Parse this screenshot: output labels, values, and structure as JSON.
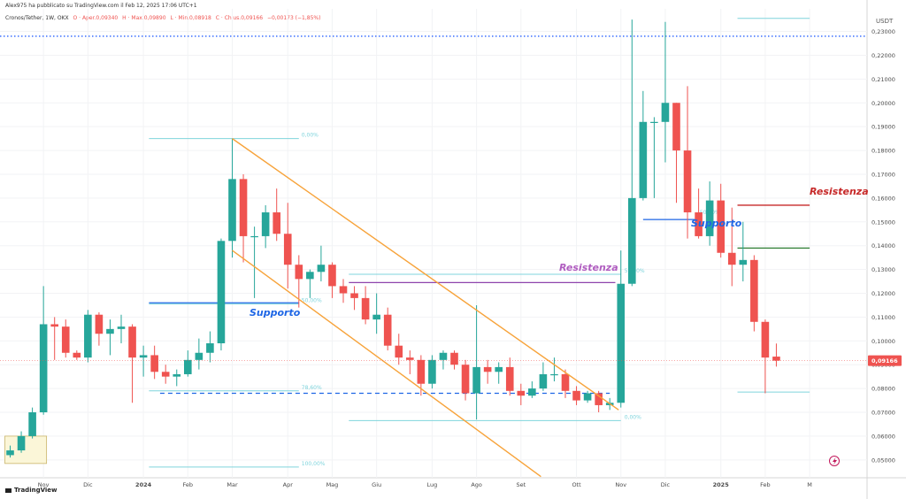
{
  "header": {
    "publisher_line": "Alex975 ha pubblicato su TradingView.com il Feb 12, 2025 17:06 UTC+1",
    "symbol": "Cronos/Tether, 1W, OKX",
    "open": "O · Aper.0,09340",
    "high": "H · Max.0,09890",
    "low": "L · Min.0,08918",
    "close": "C · Chius.0,09166",
    "change": "−0,00173 (−1,85%)"
  },
  "branding": {
    "logo_text": "TradingView"
  },
  "price_axis": {
    "unit": "USDT",
    "last_price_label": "0,09166"
  },
  "colors": {
    "up": "#26a69a",
    "down": "#ef5350",
    "channel": "#f7a33a",
    "support": "#1e66e5",
    "resistance_purple": "#8e44ad",
    "resistance_red": "#c62828",
    "green_level": "#2e7d32",
    "fib": "#7fd4dc",
    "title_line": "#2962ff"
  },
  "chart_data": {
    "type": "candlestick",
    "title": "Cronos/Tether, 1W, OKX",
    "ylabel": "USDT",
    "ylim": [
      0.0425,
      0.2395
    ],
    "y_ticks": [
      "0,23000",
      "0,22000",
      "0,21000",
      "0,20000",
      "0,19000",
      "0,18000",
      "0,17000",
      "0,16000",
      "0,15000",
      "0,14000",
      "0,13000",
      "0,12000",
      "0,11000",
      "0,10000",
      "0,09000",
      "0,08000",
      "0,07000",
      "0,06000",
      "0,05000"
    ],
    "y_tick_values": [
      0.23,
      0.22,
      0.21,
      0.2,
      0.19,
      0.18,
      0.17,
      0.16,
      0.15,
      0.14,
      0.13,
      0.12,
      0.11,
      0.1,
      0.09,
      0.08,
      0.07,
      0.06,
      0.05
    ],
    "x_tick_labels": [
      {
        "label": "Nov",
        "week": 3
      },
      {
        "label": "Dic",
        "week": 7
      },
      {
        "label": "2024",
        "week": 12
      },
      {
        "label": "Feb",
        "week": 16
      },
      {
        "label": "Mar",
        "week": 20
      },
      {
        "label": "Apr",
        "week": 25
      },
      {
        "label": "Mag",
        "week": 29
      },
      {
        "label": "Giu",
        "week": 33
      },
      {
        "label": "Lug",
        "week": 38
      },
      {
        "label": "Ago",
        "week": 42
      },
      {
        "label": "Set",
        "week": 46
      },
      {
        "label": "Ott",
        "week": 51
      },
      {
        "label": "Nov",
        "week": 55
      },
      {
        "label": "Dic",
        "week": 59
      },
      {
        "label": "2025",
        "week": 64
      },
      {
        "label": "Feb",
        "week": 68
      },
      {
        "label": "M",
        "week": 72
      }
    ],
    "candles": [
      {
        "o": 0.052,
        "h": 0.056,
        "l": 0.051,
        "c": 0.054
      },
      {
        "o": 0.054,
        "h": 0.062,
        "l": 0.053,
        "c": 0.06
      },
      {
        "o": 0.06,
        "h": 0.072,
        "l": 0.059,
        "c": 0.07
      },
      {
        "o": 0.07,
        "h": 0.123,
        "l": 0.069,
        "c": 0.107
      },
      {
        "o": 0.107,
        "h": 0.11,
        "l": 0.092,
        "c": 0.106
      },
      {
        "o": 0.106,
        "h": 0.109,
        "l": 0.093,
        "c": 0.095
      },
      {
        "o": 0.095,
        "h": 0.096,
        "l": 0.092,
        "c": 0.093
      },
      {
        "o": 0.093,
        "h": 0.113,
        "l": 0.091,
        "c": 0.111
      },
      {
        "o": 0.111,
        "h": 0.112,
        "l": 0.098,
        "c": 0.103
      },
      {
        "o": 0.103,
        "h": 0.109,
        "l": 0.094,
        "c": 0.105
      },
      {
        "o": 0.105,
        "h": 0.111,
        "l": 0.099,
        "c": 0.106
      },
      {
        "o": 0.106,
        "h": 0.107,
        "l": 0.074,
        "c": 0.093
      },
      {
        "o": 0.093,
        "h": 0.098,
        "l": 0.085,
        "c": 0.094
      },
      {
        "o": 0.094,
        "h": 0.098,
        "l": 0.084,
        "c": 0.087
      },
      {
        "o": 0.087,
        "h": 0.09,
        "l": 0.082,
        "c": 0.085
      },
      {
        "o": 0.085,
        "h": 0.088,
        "l": 0.081,
        "c": 0.086
      },
      {
        "o": 0.086,
        "h": 0.096,
        "l": 0.085,
        "c": 0.092
      },
      {
        "o": 0.092,
        "h": 0.101,
        "l": 0.088,
        "c": 0.095
      },
      {
        "o": 0.095,
        "h": 0.104,
        "l": 0.091,
        "c": 0.099
      },
      {
        "o": 0.099,
        "h": 0.143,
        "l": 0.096,
        "c": 0.142
      },
      {
        "o": 0.142,
        "h": 0.185,
        "l": 0.135,
        "c": 0.168
      },
      {
        "o": 0.168,
        "h": 0.17,
        "l": 0.133,
        "c": 0.144
      },
      {
        "o": 0.144,
        "h": 0.148,
        "l": 0.118,
        "c": 0.144
      },
      {
        "o": 0.144,
        "h": 0.157,
        "l": 0.139,
        "c": 0.154
      },
      {
        "o": 0.154,
        "h": 0.164,
        "l": 0.142,
        "c": 0.145
      },
      {
        "o": 0.145,
        "h": 0.158,
        "l": 0.122,
        "c": 0.132
      },
      {
        "o": 0.132,
        "h": 0.136,
        "l": 0.114,
        "c": 0.126
      },
      {
        "o": 0.126,
        "h": 0.13,
        "l": 0.118,
        "c": 0.129
      },
      {
        "o": 0.129,
        "h": 0.14,
        "l": 0.125,
        "c": 0.132
      },
      {
        "o": 0.132,
        "h": 0.133,
        "l": 0.118,
        "c": 0.123
      },
      {
        "o": 0.123,
        "h": 0.126,
        "l": 0.116,
        "c": 0.12
      },
      {
        "o": 0.12,
        "h": 0.123,
        "l": 0.113,
        "c": 0.118
      },
      {
        "o": 0.118,
        "h": 0.123,
        "l": 0.107,
        "c": 0.109
      },
      {
        "o": 0.109,
        "h": 0.12,
        "l": 0.103,
        "c": 0.111
      },
      {
        "o": 0.111,
        "h": 0.114,
        "l": 0.096,
        "c": 0.098
      },
      {
        "o": 0.098,
        "h": 0.103,
        "l": 0.09,
        "c": 0.093
      },
      {
        "o": 0.093,
        "h": 0.096,
        "l": 0.086,
        "c": 0.092
      },
      {
        "o": 0.092,
        "h": 0.094,
        "l": 0.077,
        "c": 0.082
      },
      {
        "o": 0.082,
        "h": 0.094,
        "l": 0.08,
        "c": 0.092
      },
      {
        "o": 0.092,
        "h": 0.096,
        "l": 0.088,
        "c": 0.095
      },
      {
        "o": 0.095,
        "h": 0.096,
        "l": 0.088,
        "c": 0.09
      },
      {
        "o": 0.09,
        "h": 0.092,
        "l": 0.075,
        "c": 0.078
      },
      {
        "o": 0.078,
        "h": 0.115,
        "l": 0.067,
        "c": 0.089
      },
      {
        "o": 0.089,
        "h": 0.092,
        "l": 0.082,
        "c": 0.087
      },
      {
        "o": 0.087,
        "h": 0.091,
        "l": 0.082,
        "c": 0.089
      },
      {
        "o": 0.089,
        "h": 0.093,
        "l": 0.077,
        "c": 0.079
      },
      {
        "o": 0.079,
        "h": 0.082,
        "l": 0.073,
        "c": 0.077
      },
      {
        "o": 0.077,
        "h": 0.083,
        "l": 0.076,
        "c": 0.08
      },
      {
        "o": 0.08,
        "h": 0.091,
        "l": 0.079,
        "c": 0.086
      },
      {
        "o": 0.086,
        "h": 0.093,
        "l": 0.083,
        "c": 0.086
      },
      {
        "o": 0.086,
        "h": 0.088,
        "l": 0.076,
        "c": 0.079
      },
      {
        "o": 0.079,
        "h": 0.081,
        "l": 0.073,
        "c": 0.075
      },
      {
        "o": 0.075,
        "h": 0.079,
        "l": 0.074,
        "c": 0.078
      },
      {
        "o": 0.078,
        "h": 0.079,
        "l": 0.07,
        "c": 0.073
      },
      {
        "o": 0.073,
        "h": 0.076,
        "l": 0.071,
        "c": 0.074
      },
      {
        "o": 0.074,
        "h": 0.138,
        "l": 0.072,
        "c": 0.124
      },
      {
        "o": 0.124,
        "h": 0.235,
        "l": 0.123,
        "c": 0.16
      },
      {
        "o": 0.16,
        "h": 0.205,
        "l": 0.159,
        "c": 0.192
      },
      {
        "o": 0.192,
        "h": 0.194,
        "l": 0.16,
        "c": 0.192
      },
      {
        "o": 0.192,
        "h": 0.234,
        "l": 0.175,
        "c": 0.2
      },
      {
        "o": 0.2,
        "h": 0.2,
        "l": 0.158,
        "c": 0.18
      },
      {
        "o": 0.18,
        "h": 0.207,
        "l": 0.143,
        "c": 0.154
      },
      {
        "o": 0.154,
        "h": 0.164,
        "l": 0.143,
        "c": 0.144
      },
      {
        "o": 0.144,
        "h": 0.167,
        "l": 0.14,
        "c": 0.159
      },
      {
        "o": 0.159,
        "h": 0.166,
        "l": 0.135,
        "c": 0.137
      },
      {
        "o": 0.137,
        "h": 0.156,
        "l": 0.123,
        "c": 0.132
      },
      {
        "o": 0.132,
        "h": 0.15,
        "l": 0.125,
        "c": 0.134
      },
      {
        "o": 0.134,
        "h": 0.136,
        "l": 0.104,
        "c": 0.108
      },
      {
        "o": 0.108,
        "h": 0.109,
        "l": 0.078,
        "c": 0.093
      },
      {
        "o": 0.0934,
        "h": 0.0989,
        "l": 0.0892,
        "c": 0.0917
      }
    ],
    "channel_upper": {
      "from": {
        "week": 20,
        "y": 0.185
      },
      "to": {
        "week": 54.8,
        "y": 0.071
      }
    },
    "channel_lower": {
      "from": {
        "week": 20,
        "y": 0.138
      },
      "to": {
        "week": 47.8,
        "y": 0.043
      }
    },
    "levels": [
      {
        "name": "Supporto 2024",
        "y": 0.116,
        "from": 12.5,
        "to": 26,
        "label": "Supporto"
      },
      {
        "name": "Resistenza 2024",
        "y": 0.1245,
        "from": 30.5,
        "to": 54.5,
        "label": "Resistenza"
      },
      {
        "name": "Dashed level",
        "y": 0.078,
        "from": 13.5,
        "to": 54,
        "dashed": true
      },
      {
        "name": "Supporto 2024 Q4",
        "y": 0.151,
        "from": 57,
        "to": 62,
        "label": "Supporto"
      },
      {
        "name": "Resistenza 2025",
        "y": 0.157,
        "from": 65.5,
        "to": 72,
        "label": "Resistenza"
      },
      {
        "name": "Green level",
        "y": 0.139,
        "from": 65.5,
        "to": 72
      }
    ],
    "fib_left": {
      "from": 12.5,
      "to": 26,
      "levels": [
        {
          "label": "0,00%",
          "y": 0.185
        },
        {
          "label": "50,00%",
          "y": 0.1155
        },
        {
          "label": "78,60%",
          "y": 0.079
        },
        {
          "label": "100,00%",
          "y": 0.047
        }
      ]
    },
    "fib_right": {
      "from": 30.5,
      "to": 55,
      "levels": [
        {
          "label": "50,00%",
          "y": 0.128
        },
        {
          "label": "0,00%",
          "y": 0.0665
        }
      ]
    },
    "fib_top_right": {
      "from": 65.5,
      "to": 72,
      "levels": [
        {
          "y": 0.2355
        },
        {
          "y": 0.0785
        }
      ]
    },
    "fib_mid_label": {
      "label": "50,00%",
      "y": 0.154
    },
    "title_line_y": 0.228,
    "highlight_box": {
      "from_week": 0,
      "to_week": 2.8,
      "y_top": 0.06,
      "y_bottom": 0.0485
    }
  }
}
